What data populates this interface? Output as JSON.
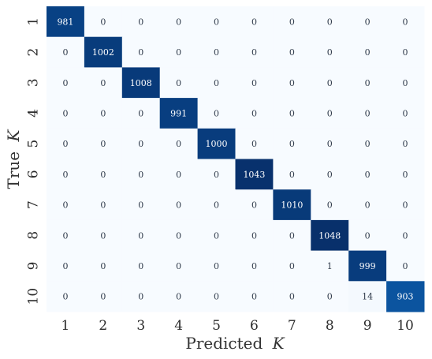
{
  "chart_data": {
    "type": "heatmap",
    "title": "",
    "xlabel": "Predicted",
    "ylabel": "True",
    "axis_symbol": "K",
    "x_categories": [
      "1",
      "2",
      "3",
      "4",
      "5",
      "6",
      "7",
      "8",
      "9",
      "10"
    ],
    "y_categories": [
      "1",
      "2",
      "3",
      "4",
      "5",
      "6",
      "7",
      "8",
      "9",
      "10"
    ],
    "values": [
      [
        981,
        0,
        0,
        0,
        0,
        0,
        0,
        0,
        0,
        0
      ],
      [
        0,
        1002,
        0,
        0,
        0,
        0,
        0,
        0,
        0,
        0
      ],
      [
        0,
        0,
        1008,
        0,
        0,
        0,
        0,
        0,
        0,
        0
      ],
      [
        0,
        0,
        0,
        991,
        0,
        0,
        0,
        0,
        0,
        0
      ],
      [
        0,
        0,
        0,
        0,
        1000,
        0,
        0,
        0,
        0,
        0
      ],
      [
        0,
        0,
        0,
        0,
        0,
        1043,
        0,
        0,
        0,
        0
      ],
      [
        0,
        0,
        0,
        0,
        0,
        0,
        1010,
        0,
        0,
        0
      ],
      [
        0,
        0,
        0,
        0,
        0,
        0,
        0,
        1048,
        0,
        0
      ],
      [
        0,
        0,
        0,
        0,
        0,
        0,
        0,
        1,
        999,
        0
      ],
      [
        0,
        0,
        0,
        0,
        0,
        0,
        0,
        0,
        14,
        903
      ]
    ],
    "colormap": "Blues",
    "colors": {
      "low": "#f7fbff",
      "high": "#08306b",
      "text_dark": "#2f3a4a",
      "text_light": "#ffffff"
    },
    "grid": false,
    "legend": "none"
  }
}
